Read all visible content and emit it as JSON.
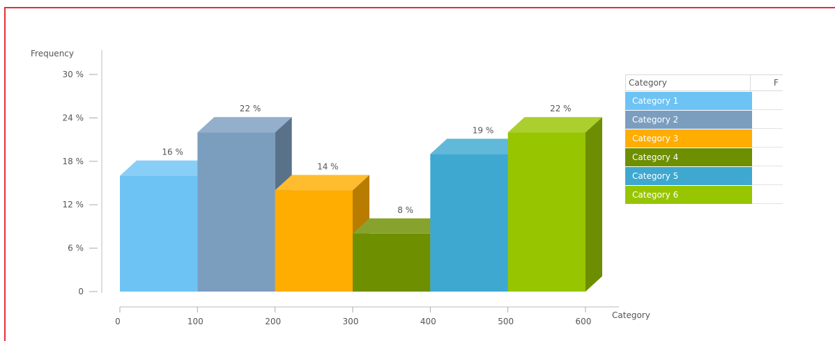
{
  "chart_data": {
    "type": "bar",
    "style": "3d",
    "ylabel": "Frequency",
    "xlabel": "Category",
    "y_ticks": [
      "0",
      "6 %",
      "12 %",
      "18 %",
      "24 %",
      "30 %"
    ],
    "ylim": [
      0,
      30
    ],
    "x_ticks": [
      "0",
      "100",
      "200",
      "300",
      "400",
      "500",
      "600"
    ],
    "xlim": [
      0,
      600
    ],
    "bars": [
      {
        "name": "Category 1",
        "from": 0,
        "to": 100,
        "value": 16,
        "label": "16 %",
        "color": "#6ec3f5"
      },
      {
        "name": "Category 2",
        "from": 100,
        "to": 200,
        "value": 22,
        "label": "22 %",
        "color": "#7b9ebf"
      },
      {
        "name": "Category 3",
        "from": 200,
        "to": 300,
        "value": 14,
        "label": "14 %",
        "color": "#ffad00"
      },
      {
        "name": "Category 4",
        "from": 300,
        "to": 400,
        "value": 8,
        "label": "8 %",
        "color": "#6d8f00"
      },
      {
        "name": "Category 5",
        "from": 400,
        "to": 500,
        "value": 19,
        "label": "19 %",
        "color": "#3ea8d0"
      },
      {
        "name": "Category 6",
        "from": 500,
        "to": 600,
        "value": 22,
        "label": "22 %",
        "color": "#97c500"
      }
    ],
    "grid": false
  },
  "legend": {
    "header_category": "Category",
    "header_second": "F"
  }
}
